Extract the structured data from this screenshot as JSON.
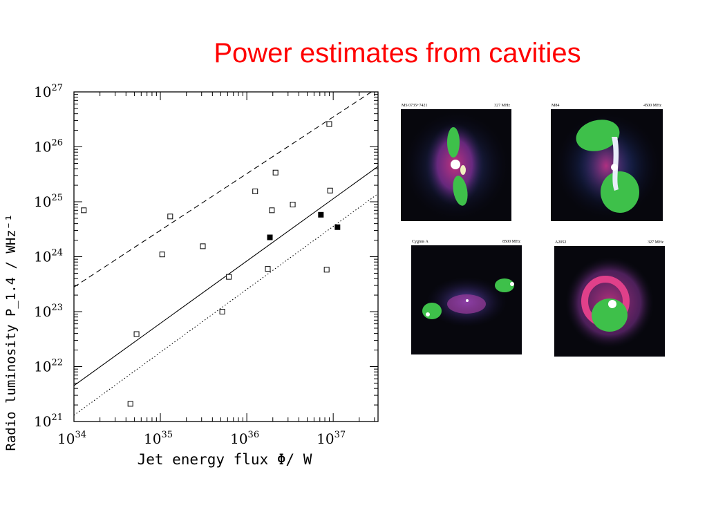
{
  "slide": {
    "title": "Power estimates from cavities"
  },
  "chart_data": {
    "type": "scatter",
    "title": "",
    "xlabel": "Jet energy flux Φ/ W",
    "ylabel": "Radio luminosity P_1.4 / WHz⁻¹",
    "xscale": "log",
    "yscale": "log",
    "xlim": [
      1e+34,
      3.3e+37
    ],
    "ylim": [
      1e+21,
      1e+27
    ],
    "x_tick_labels": [
      "10^34",
      "10^35",
      "10^36",
      "10^37"
    ],
    "y_tick_labels": [
      "10^21",
      "10^22",
      "10^23",
      "10^24",
      "10^25",
      "10^26",
      "10^27"
    ],
    "grid": false,
    "series": [
      {
        "marker": "open-square",
        "points": [
          {
            "x": 1.3e+34,
            "y": 7e+24
          },
          {
            "x": 4.5e+34,
            "y": 2.1e+21
          },
          {
            "x": 5.3e+34,
            "y": 3.9e+22
          },
          {
            "x": 1.05e+35,
            "y": 1.1e+24
          },
          {
            "x": 1.3e+35,
            "y": 5.4e+24
          },
          {
            "x": 3.1e+35,
            "y": 1.55e+24
          },
          {
            "x": 5.2e+35,
            "y": 1e+23
          },
          {
            "x": 6.2e+35,
            "y": 4.3e+23
          },
          {
            "x": 1.25e+36,
            "y": 1.55e+25
          },
          {
            "x": 1.75e+36,
            "y": 6e+23
          },
          {
            "x": 1.95e+36,
            "y": 7e+24
          },
          {
            "x": 2.15e+36,
            "y": 3.4e+25
          },
          {
            "x": 3.4e+36,
            "y": 8.9e+24
          },
          {
            "x": 8.4e+36,
            "y": 5.8e+23
          },
          {
            "x": 9e+36,
            "y": 2.6e+26
          },
          {
            "x": 9.2e+36,
            "y": 1.6e+25
          }
        ]
      },
      {
        "marker": "filled-square",
        "points": [
          {
            "x": 1.85e+36,
            "y": 2.25e+24
          },
          {
            "x": 7.2e+36,
            "y": 5.8e+24
          },
          {
            "x": 1.12e+37,
            "y": 3.45e+24
          }
        ]
      }
    ],
    "lines": [
      {
        "style": "dashed",
        "x": [
          1e+34,
          3.3e+37
        ],
        "y": [
          2.8e+23,
          1.2e+27
        ]
      },
      {
        "style": "solid",
        "x": [
          1e+34,
          3.3e+37
        ],
        "y": [
          4.5e+21,
          4.4e+25
        ]
      },
      {
        "style": "dotted",
        "x": [
          1e+34,
          3.3e+37
        ],
        "y": [
          1.3e+21,
          1.4e+25
        ]
      }
    ]
  },
  "images": [
    {
      "left_label": "MS 0735+7421",
      "right_label": "327 MHz"
    },
    {
      "left_label": "M84",
      "right_label": "4500 MHz"
    },
    {
      "left_label": "Cygnus A",
      "right_label": "8500 MHz"
    },
    {
      "left_label": "A2052",
      "right_label": "327 MHz"
    }
  ]
}
